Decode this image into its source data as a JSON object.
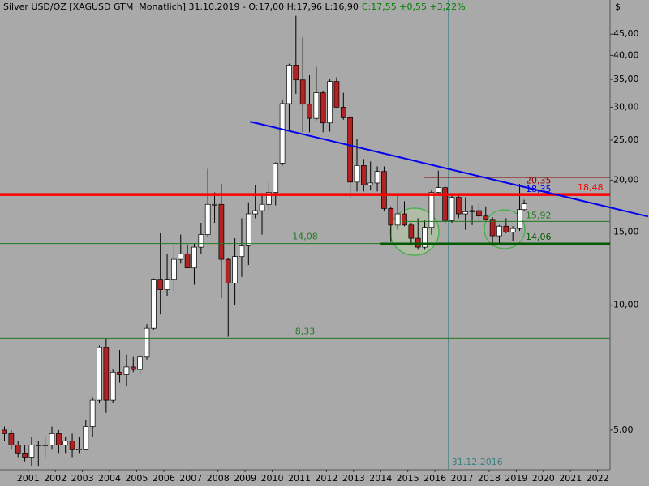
{
  "chart_data": {
    "type": "candlestick",
    "title": "Silver USD/OZ [XAGUSD GTM  Monatlich] 31.10.2019 - O:17,00 H:17,96 L:16,90",
    "change": "C:17,55 +0,55 +3,22%",
    "y_unit": "$",
    "log_scale": true,
    "up_color": "#ffffff",
    "down_color": "#b22222",
    "xlim": [
      2000.46,
      2022.96
    ],
    "ylim": [
      4.01,
      54.4
    ],
    "yticks": [
      {
        "value": 45,
        "label": "45,00"
      },
      {
        "value": 40,
        "label": "40,00"
      },
      {
        "value": 35,
        "label": "35,00"
      },
      {
        "value": 30,
        "label": "30,00"
      },
      {
        "value": 25,
        "label": "25,00"
      },
      {
        "value": 20,
        "label": "20,00"
      },
      {
        "value": 15,
        "label": "15,00"
      },
      {
        "value": 10,
        "label": "10,00"
      },
      {
        "value": 5,
        "label": "5,00"
      }
    ],
    "xticks": [
      {
        "value": 2001.5,
        "label": "2001"
      },
      {
        "value": 2002.5,
        "label": "2002"
      },
      {
        "value": 2003.5,
        "label": "2003"
      },
      {
        "value": 2004.5,
        "label": "2004"
      },
      {
        "value": 2005.5,
        "label": "2005"
      },
      {
        "value": 2006.5,
        "label": "2006"
      },
      {
        "value": 2007.5,
        "label": "2007"
      },
      {
        "value": 2008.5,
        "label": "2008"
      },
      {
        "value": 2009.5,
        "label": "2009"
      },
      {
        "value": 2010.5,
        "label": "2010"
      },
      {
        "value": 2011.5,
        "label": "2011"
      },
      {
        "value": 2012.5,
        "label": "2012"
      },
      {
        "value": 2013.5,
        "label": "2013"
      },
      {
        "value": 2014.5,
        "label": "2014"
      },
      {
        "value": 2015.5,
        "label": "2015"
      },
      {
        "value": 2016.5,
        "label": "2016"
      },
      {
        "value": 2017.5,
        "label": "2017"
      },
      {
        "value": 2018.5,
        "label": "2018"
      },
      {
        "value": 2019.5,
        "label": "2019"
      },
      {
        "value": 2020.5,
        "label": "2020"
      },
      {
        "value": 2021.5,
        "label": "2021"
      },
      {
        "value": 2022.5,
        "label": "2022"
      }
    ],
    "x": [
      2000.625,
      2000.875,
      2001.125,
      2001.375,
      2001.625,
      2001.875,
      2002.125,
      2002.375,
      2002.625,
      2002.875,
      2003.125,
      2003.375,
      2003.625,
      2003.875,
      2004.125,
      2004.375,
      2004.625,
      2004.875,
      2005.125,
      2005.375,
      2005.625,
      2005.875,
      2006.125,
      2006.375,
      2006.625,
      2006.875,
      2007.125,
      2007.375,
      2007.625,
      2007.875,
      2008.125,
      2008.375,
      2008.625,
      2008.875,
      2009.125,
      2009.375,
      2009.625,
      2009.875,
      2010.125,
      2010.375,
      2010.625,
      2010.875,
      2011.125,
      2011.375,
      2011.625,
      2011.875,
      2012.125,
      2012.375,
      2012.625,
      2012.875,
      2013.125,
      2013.375,
      2013.625,
      2013.875,
      2014.125,
      2014.375,
      2014.625,
      2014.875,
      2015.125,
      2015.375,
      2015.625,
      2015.875,
      2016.125,
      2016.375,
      2016.625,
      2016.875,
      2017.125,
      2017.375,
      2017.625,
      2017.875,
      2018.125,
      2018.375,
      2018.625,
      2018.875,
      2019.125,
      2019.375,
      2019.625,
      2019.79
    ],
    "open": [
      5.0,
      4.9,
      4.6,
      4.4,
      4.3,
      4.6,
      4.6,
      4.6,
      4.9,
      4.6,
      4.7,
      4.5,
      4.5,
      5.1,
      5.9,
      7.9,
      5.9,
      6.9,
      6.8,
      7.1,
      7.0,
      7.5,
      8.8,
      11.5,
      10.9,
      11.5,
      12.9,
      13.3,
      12.3,
      13.8,
      14.8,
      17.5,
      17.5,
      12.9,
      11.3,
      13.1,
      13.9,
      16.6,
      16.9,
      17.5,
      18.7,
      22.0,
      30.6,
      37.9,
      34.9,
      30.5,
      28.2,
      32.5,
      27.5,
      34.6,
      30.0,
      28.3,
      19.8,
      21.7,
      19.5,
      19.7,
      21.0,
      17.1,
      15.6,
      16.6,
      15.6,
      14.5,
      13.8,
      15.4,
      18.7,
      19.2,
      16.0,
      18.2,
      16.6,
      16.8,
      16.9,
      16.4,
      16.1,
      14.7,
      15.5,
      15.0,
      15.3,
      17.0
    ],
    "high": [
      5.1,
      5.0,
      4.7,
      4.6,
      4.8,
      4.7,
      4.8,
      5.1,
      5.0,
      4.8,
      4.9,
      4.8,
      5.3,
      6.0,
      8.0,
      8.3,
      7.0,
      7.8,
      7.6,
      7.5,
      7.6,
      9.0,
      11.6,
      14.9,
      13.3,
      14.0,
      14.8,
      14.0,
      14.1,
      15.8,
      21.3,
      18.7,
      19.6,
      13.0,
      14.5,
      16.2,
      17.7,
      19.5,
      18.5,
      19.8,
      22.1,
      31.3,
      38.2,
      49.8,
      44.2,
      35.9,
      37.5,
      32.9,
      35.0,
      35.4,
      32.5,
      28.6,
      25.2,
      22.5,
      22.2,
      21.6,
      21.6,
      17.3,
      18.5,
      17.8,
      15.8,
      16.2,
      16.0,
      18.9,
      21.1,
      19.4,
      18.5,
      18.6,
      18.2,
      17.4,
      17.7,
      17.3,
      16.3,
      15.6,
      16.2,
      15.5,
      19.6,
      17.96
    ],
    "low": [
      4.7,
      4.5,
      4.3,
      4.2,
      4.1,
      4.1,
      4.3,
      4.5,
      4.4,
      4.4,
      4.3,
      4.4,
      4.5,
      4.8,
      5.8,
      5.5,
      5.8,
      6.5,
      6.4,
      6.9,
      6.8,
      7.4,
      8.7,
      9.5,
      10.5,
      10.8,
      12.6,
      12.3,
      11.2,
      13.3,
      14.6,
      15.8,
      10.4,
      8.4,
      10.0,
      11.7,
      12.5,
      16.2,
      14.8,
      17.0,
      17.4,
      21.7,
      26.4,
      32.3,
      26.1,
      26.1,
      27.9,
      26.1,
      26.2,
      29.9,
      28.0,
      18.2,
      18.8,
      18.8,
      18.9,
      18.8,
      16.9,
      14.2,
      15.2,
      15.5,
      14.0,
      13.6,
      13.6,
      14.8,
      18.5,
      15.6,
      15.8,
      16.2,
      15.2,
      15.6,
      16.0,
      16.0,
      13.9,
      14.0,
      14.9,
      14.3,
      15.1,
      16.9
    ],
    "close": [
      4.9,
      4.6,
      4.4,
      4.3,
      4.6,
      4.6,
      4.6,
      4.9,
      4.6,
      4.7,
      4.5,
      4.5,
      5.1,
      5.9,
      7.9,
      5.9,
      6.9,
      6.8,
      7.1,
      7.0,
      7.5,
      8.8,
      11.5,
      10.9,
      11.5,
      12.9,
      13.3,
      12.3,
      13.8,
      14.8,
      17.5,
      17.5,
      12.9,
      11.3,
      13.1,
      13.9,
      16.6,
      16.9,
      17.5,
      18.7,
      22.0,
      30.6,
      37.9,
      34.9,
      30.5,
      28.2,
      32.5,
      27.5,
      34.6,
      30.0,
      28.3,
      19.8,
      21.7,
      19.5,
      19.7,
      21.0,
      17.1,
      15.6,
      16.6,
      15.6,
      14.5,
      13.8,
      15.4,
      18.7,
      19.2,
      16.0,
      18.2,
      16.6,
      16.8,
      16.9,
      16.4,
      16.1,
      14.7,
      15.5,
      15.0,
      15.3,
      17.0,
      17.55
    ],
    "hlines": [
      {
        "value": 18.48,
        "label": "18,48",
        "color": "#ff0000"
      },
      {
        "value": 14.08,
        "label": "14,08",
        "color": "#1f7a1f"
      },
      {
        "value": 8.33,
        "label": "8,33",
        "color": "#1f7a1f"
      },
      {
        "value": 20.35,
        "label": "20,35",
        "color": "#8b0000",
        "start": 2016.1
      },
      {
        "value": 15.92,
        "label": "15,92",
        "color": "#1f7a1f",
        "start": 2015.3
      },
      {
        "value": 14.06,
        "label": "14,06",
        "color": "#005a00",
        "start": 2014.5
      }
    ],
    "trendline": {
      "start": [
        2009.68,
        27.7
      ],
      "end": [
        2022.96,
        17.2
      ],
      "label": "18,35",
      "color": "#0000ee"
    },
    "vline": {
      "value": 2017.0,
      "label": "31.12.2016",
      "color": "#3d8080"
    }
  }
}
